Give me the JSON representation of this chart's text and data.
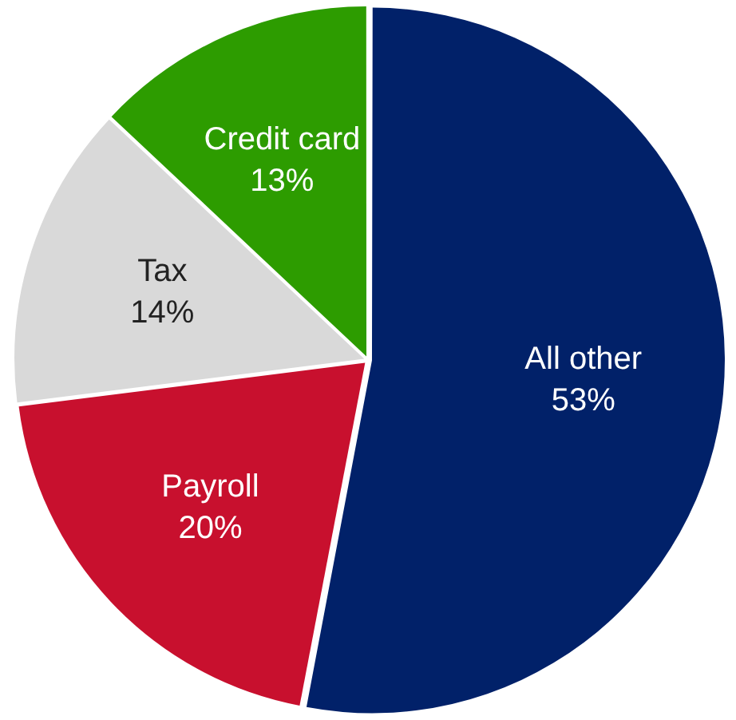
{
  "chart_data": {
    "type": "pie",
    "categories": [
      "All other",
      "Payroll",
      "Tax",
      "Credit card"
    ],
    "values": [
      53,
      20,
      14,
      13
    ],
    "colors": [
      "#012169",
      "#c8102e",
      "#d9d9d9",
      "#2d9c00"
    ],
    "value_labels": [
      "53%",
      "20%",
      "14%",
      "13%"
    ],
    "legend": false
  }
}
